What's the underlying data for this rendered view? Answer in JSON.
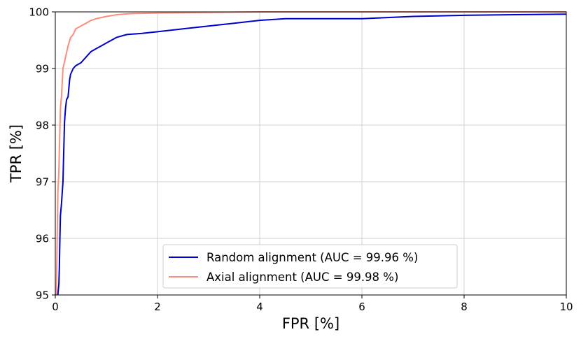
{
  "chart_data": {
    "type": "line",
    "title": "",
    "xlabel": "FPR [%]",
    "ylabel": "TPR [%]",
    "xlim": [
      0,
      10
    ],
    "ylim": [
      95,
      100
    ],
    "xticks": [
      "0",
      "2",
      "4",
      "6",
      "8",
      "10"
    ],
    "yticks": [
      "95",
      "96",
      "97",
      "98",
      "99",
      "100"
    ],
    "grid": true,
    "legend_position": "lower-center",
    "series": [
      {
        "name": "Random alignment (AUC = 99.96 %)",
        "color": "#0000cc",
        "x": [
          0.05,
          0.07,
          0.08,
          0.09,
          0.1,
          0.12,
          0.15,
          0.18,
          0.2,
          0.22,
          0.25,
          0.28,
          0.3,
          0.35,
          0.4,
          0.5,
          0.6,
          0.7,
          0.8,
          0.9,
          1.0,
          1.2,
          1.4,
          1.7,
          2.0,
          2.5,
          3.0,
          3.5,
          4.0,
          4.5,
          5.0,
          6.0,
          6.5,
          7.0,
          8.0,
          9.0,
          10.0
        ],
        "y": [
          95.0,
          95.2,
          95.5,
          96.0,
          96.4,
          96.6,
          97.0,
          98.05,
          98.3,
          98.45,
          98.5,
          98.8,
          98.9,
          99.0,
          99.05,
          99.1,
          99.2,
          99.3,
          99.35,
          99.4,
          99.45,
          99.55,
          99.6,
          99.62,
          99.65,
          99.7,
          99.75,
          99.8,
          99.85,
          99.88,
          99.88,
          99.88,
          99.9,
          99.92,
          99.94,
          99.95,
          99.96
        ]
      },
      {
        "name": "Axial alignment (AUC = 99.98 %)",
        "color": "#ff8c7a",
        "x": [
          0.02,
          0.04,
          0.05,
          0.07,
          0.1,
          0.12,
          0.15,
          0.2,
          0.25,
          0.3,
          0.35,
          0.4,
          0.5,
          0.6,
          0.7,
          0.8,
          0.9,
          1.0,
          1.2,
          1.5,
          2.0,
          3.0,
          4.0,
          6.0,
          8.0,
          10.0
        ],
        "y": [
          95.0,
          96.2,
          96.8,
          97.2,
          98.3,
          98.5,
          99.0,
          99.2,
          99.4,
          99.55,
          99.6,
          99.7,
          99.75,
          99.8,
          99.85,
          99.88,
          99.9,
          99.92,
          99.95,
          99.97,
          99.98,
          99.99,
          100.0,
          100.0,
          100.0,
          100.0
        ]
      }
    ]
  }
}
